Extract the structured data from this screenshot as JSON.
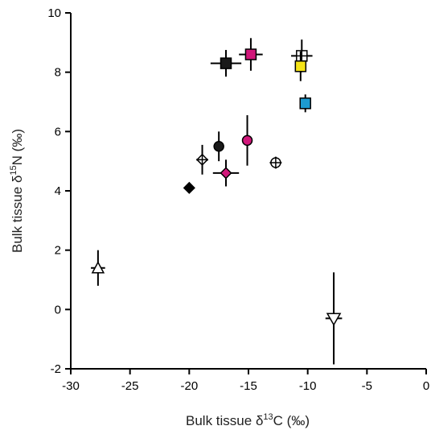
{
  "chart_data": {
    "type": "scatter",
    "title": "",
    "xlabel": {
      "prefix": "Bulk tissue δ",
      "sup": "13",
      "suffix": "C (‰)"
    },
    "ylabel": {
      "prefix": "Bulk tissue δ",
      "sup": "15",
      "suffix": "N (‰)"
    },
    "xlim": [
      -30,
      0
    ],
    "ylim": [
      -2,
      10
    ],
    "xticks": [
      "-30",
      "-25",
      "-20",
      "-15",
      "-10",
      "-5",
      "0"
    ],
    "yticks": [
      "-2",
      "0",
      "2",
      "4",
      "6",
      "8",
      "10"
    ],
    "grid": false,
    "legend": "none",
    "points": [
      {
        "x": -27.7,
        "y": 1.4,
        "marker": "triangle-up",
        "fill": "#ffffff",
        "xerr": 0.6,
        "yerr": 0.6
      },
      {
        "x": -20.0,
        "y": 4.1,
        "marker": "diamond",
        "fill": "#000000",
        "xerr": 0,
        "yerr": 0
      },
      {
        "x": -18.9,
        "y": 5.05,
        "marker": "diamond-cross",
        "fill": "#ffffff",
        "xerr": 0.5,
        "yerr": 0.5
      },
      {
        "x": -17.5,
        "y": 5.5,
        "marker": "circle",
        "fill": "#1a1a1a",
        "xerr": 0.3,
        "yerr": 0.5
      },
      {
        "x": -16.9,
        "y": 4.6,
        "marker": "diamond",
        "fill": "#d1177a",
        "xerr": 1.1,
        "yerr": 0.45
      },
      {
        "x": -16.9,
        "y": 8.3,
        "marker": "square",
        "fill": "#1a1a1a",
        "xerr": 1.3,
        "yerr": 0.45
      },
      {
        "x": -15.1,
        "y": 5.7,
        "marker": "circle",
        "fill": "#d1177a",
        "xerr": 0.3,
        "yerr": 0.85
      },
      {
        "x": -14.8,
        "y": 8.6,
        "marker": "square",
        "fill": "#d1177a",
        "xerr": 1.0,
        "yerr": 0.55
      },
      {
        "x": -12.7,
        "y": 4.95,
        "marker": "circle-cross",
        "fill": "#ffffff",
        "xerr": 0.5,
        "yerr": 0.2
      },
      {
        "x": -10.5,
        "y": 8.55,
        "marker": "square-cross",
        "fill": "#ffffff",
        "xerr": 0.9,
        "yerr": 0.55
      },
      {
        "x": -10.6,
        "y": 8.2,
        "marker": "square",
        "fill": "#f5e418",
        "xerr": 0.4,
        "yerr": 0.5
      },
      {
        "x": -10.2,
        "y": 6.95,
        "marker": "square",
        "fill": "#1d9bd1",
        "xerr": 0.25,
        "yerr": 0.3
      },
      {
        "x": -7.8,
        "y": -0.3,
        "marker": "triangle-down",
        "fill": "#ffffff",
        "xerr": 0.7,
        "yerr": 1.55
      }
    ]
  }
}
